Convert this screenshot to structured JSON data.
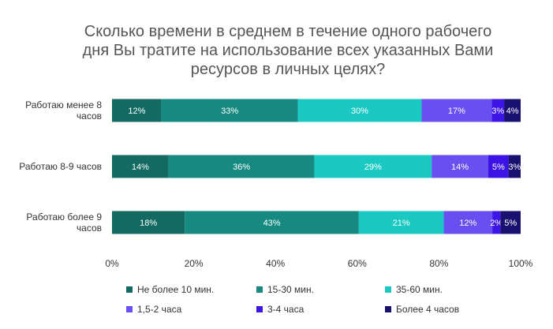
{
  "chart_data": {
    "type": "bar",
    "orientation": "horizontal",
    "stacked": true,
    "title_lines": [
      "Сколько времени в среднем в течение одного рабочего",
      "дня Вы тратите на использование всех указанных Вами",
      "ресурсов в личных целях?"
    ],
    "categories": [
      [
        "Работаю менее 8",
        "часов"
      ],
      [
        "Работаю 8-9 часов"
      ],
      [
        "Работаю более 9",
        "часов"
      ]
    ],
    "series": [
      {
        "name": "Не более 10 мин.",
        "color": "#136a63",
        "values": [
          12,
          14,
          18
        ],
        "labels": [
          "12%",
          "14%",
          "18%"
        ]
      },
      {
        "name": "15-30 мин.",
        "color": "#168a80",
        "values": [
          33,
          36,
          43
        ],
        "labels": [
          "33%",
          "36%",
          "43%"
        ]
      },
      {
        "name": "35-60 мин.",
        "color": "#1ac9c2",
        "values": [
          30,
          29,
          21
        ],
        "labels": [
          "30%",
          "29%",
          "21%"
        ]
      },
      {
        "name": "1,5-2 часа",
        "color": "#6a4ff0",
        "values": [
          17,
          14,
          12
        ],
        "labels": [
          "17%",
          "14%",
          "12%"
        ]
      },
      {
        "name": "3-4 часа",
        "color": "#3c14e6",
        "values": [
          3,
          5,
          2
        ],
        "labels": [
          "3%",
          "5%",
          "2%"
        ]
      },
      {
        "name": "Более 4 часов",
        "color": "#1a1070",
        "values": [
          4,
          3,
          5
        ],
        "labels": [
          "4%",
          "3%",
          "5%"
        ]
      }
    ],
    "xlim": [
      0,
      100
    ],
    "xticks": [
      "0%",
      "20%",
      "40%",
      "60%",
      "80%",
      "100%"
    ],
    "grid": false,
    "legend_position": "bottom"
  }
}
